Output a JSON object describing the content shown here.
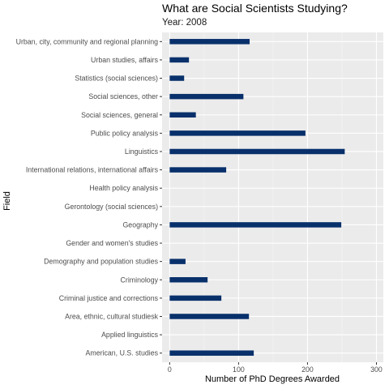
{
  "chart_data": {
    "type": "bar",
    "orientation": "horizontal",
    "title": "What are Social Scientists Studying?",
    "subtitle": "Year: 2008",
    "xlabel": "Number of PhD Degrees Awarded",
    "ylabel": "Field",
    "xlim": [
      -11,
      310
    ],
    "x_ticks": [
      0,
      100,
      200,
      300
    ],
    "x_tick_labels": [
      "0",
      "100",
      "200",
      "300"
    ],
    "grid": true,
    "legend": "none",
    "categories": [
      "Urban, city, community and regional planning",
      "Urban studies, affairs",
      "Statistics (social sciences)",
      "Social sciences, other",
      "Social sciences, general",
      "Public policy analysis",
      "Linguistics",
      "International relations, international affairs",
      "Health policy analysis",
      "Gerontology (social sciences)",
      "Geography",
      "Gender and women's studies",
      "Demography and population studies",
      "Criminology",
      "Criminal justice and corrections",
      "Area, ethnic, cultural studiesk",
      "Applied linguistics",
      "American, U.S. studies"
    ],
    "values": [
      116,
      28,
      21,
      107,
      38,
      197,
      254,
      82,
      0,
      0,
      249,
      0,
      23,
      55,
      75,
      115,
      0,
      122
    ],
    "colors": {
      "bar": "#08306b",
      "panel": "#ebebeb",
      "grid_major": "#ffffff",
      "grid_minor": "#f5f5f5"
    }
  }
}
